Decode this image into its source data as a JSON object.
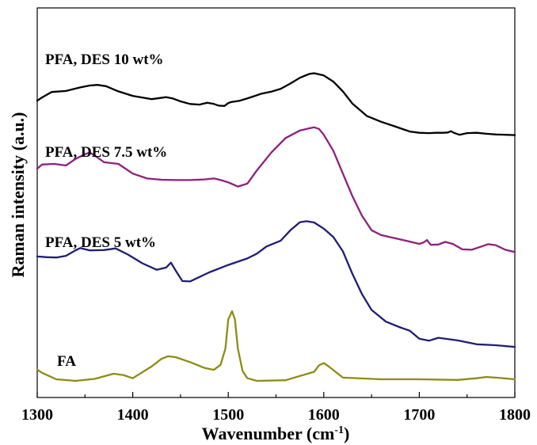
{
  "chart_data": {
    "type": "line",
    "title": "",
    "xlabel": "Wavenumber (cm",
    "xlabel_sup": "-1",
    "xlabel_close": ")",
    "ylabel": "Raman intensity (a.u.)",
    "xlim": [
      1300,
      1800
    ],
    "ylim": [
      0,
      100
    ],
    "y_ticks_shown": false,
    "xticks": [
      1300,
      1400,
      1500,
      1600,
      1700,
      1800
    ],
    "grid": false,
    "legend": "none",
    "series": [
      {
        "name": "PFA, DES 10 wt%",
        "color": "#000000",
        "x": [
          1300,
          1305,
          1315,
          1330,
          1345,
          1355,
          1363,
          1372,
          1385,
          1400,
          1420,
          1435,
          1442,
          1450,
          1460,
          1470,
          1478,
          1485,
          1490,
          1496,
          1500,
          1503,
          1512,
          1522,
          1526,
          1535,
          1545,
          1555,
          1565,
          1575,
          1585,
          1590,
          1600,
          1610,
          1620,
          1630,
          1645,
          1660,
          1675,
          1690,
          1700,
          1710,
          1718,
          1725,
          1730,
          1733,
          1737,
          1742,
          1750,
          1760,
          1770,
          1780,
          1790,
          1800
        ],
        "y": [
          86.5,
          87.5,
          89.2,
          89.5,
          90.6,
          91.2,
          91.4,
          91.0,
          89.4,
          88.0,
          87.0,
          87.6,
          87.2,
          86.3,
          85.5,
          85.3,
          85.9,
          85.5,
          85.0,
          84.9,
          85.8,
          86.1,
          86.5,
          87.4,
          87.8,
          88.7,
          89.3,
          90.2,
          91.8,
          93.6,
          94.8,
          95.0,
          94.3,
          92.4,
          89.4,
          85.6,
          81.8,
          80.0,
          78.5,
          77.0,
          76.6,
          76.5,
          76.6,
          76.6,
          76.7,
          77.1,
          76.5,
          76.0,
          76.5,
          76.6,
          76.3,
          76.1,
          76.0,
          75.9
        ]
      },
      {
        "name": "PFA, DES 7.5 wt%",
        "color": "#8e1f7e",
        "x": [
          1300,
          1305,
          1318,
          1330,
          1340,
          1350,
          1355,
          1360,
          1370,
          1385,
          1400,
          1415,
          1430,
          1445,
          1460,
          1475,
          1485,
          1492,
          1500,
          1510,
          1520,
          1530,
          1545,
          1560,
          1575,
          1585,
          1590,
          1595,
          1600,
          1610,
          1620,
          1630,
          1640,
          1650,
          1660,
          1675,
          1690,
          1700,
          1705,
          1708,
          1712,
          1720,
          1727,
          1735,
          1745,
          1755,
          1765,
          1772,
          1780,
          1790,
          1800
        ],
        "y": [
          65.5,
          66.8,
          67.0,
          66.5,
          68.5,
          70.0,
          70.5,
          69.6,
          67.5,
          67.0,
          64.0,
          62.5,
          62.1,
          62.0,
          62.0,
          62.2,
          62.5,
          62.0,
          61.3,
          60.0,
          60.9,
          65.0,
          70.5,
          75.0,
          77.3,
          78.0,
          78.3,
          77.8,
          76.0,
          71.0,
          64.0,
          57.0,
          51.0,
          46.5,
          45.0,
          44.0,
          43.0,
          42.3,
          42.8,
          43.5,
          42.0,
          42.1,
          42.9,
          42.3,
          40.6,
          40.5,
          41.5,
          42.2,
          41.9,
          40.5,
          39.8
        ]
      },
      {
        "name": "PFA, DES 5 wt%",
        "color": "#1f1d76",
        "x": [
          1300,
          1310,
          1320,
          1330,
          1340,
          1345,
          1355,
          1370,
          1382,
          1395,
          1410,
          1425,
          1435,
          1440,
          1445,
          1452,
          1460,
          1480,
          1500,
          1520,
          1530,
          1540,
          1555,
          1565,
          1575,
          1582,
          1590,
          1600,
          1610,
          1620,
          1630,
          1640,
          1650,
          1665,
          1680,
          1690,
          1700,
          1710,
          1720,
          1740,
          1760,
          1780,
          1800
        ],
        "y": [
          38.4,
          38.2,
          38.1,
          38.6,
          40.3,
          41.0,
          40.3,
          40.4,
          40.9,
          39.0,
          36.3,
          34.3,
          35.0,
          36.5,
          34.0,
          30.8,
          30.7,
          33.5,
          35.8,
          37.8,
          39.3,
          41.5,
          43.3,
          46.5,
          49.0,
          49.3,
          48.9,
          47.0,
          44.4,
          40.0,
          33.0,
          26.8,
          21.9,
          18.3,
          16.5,
          15.5,
          13.0,
          12.4,
          13.3,
          12.5,
          11.3,
          11.0,
          10.5
        ]
      },
      {
        "name": "FA",
        "color": "#8c8c14",
        "x": [
          1300,
          1305,
          1320,
          1340,
          1360,
          1380,
          1390,
          1400,
          1420,
          1430,
          1437,
          1445,
          1460,
          1475,
          1485,
          1492,
          1497,
          1500,
          1504,
          1507,
          1510,
          1515,
          1520,
          1530,
          1560,
          1590,
          1595,
          1600,
          1605,
          1620,
          1660,
          1700,
          1740,
          1760,
          1770,
          1780,
          1800
        ],
        "y": [
          3.5,
          2.5,
          0.5,
          0.0,
          0.6,
          2.2,
          1.8,
          0.8,
          4.5,
          6.8,
          7.6,
          7.3,
          5.8,
          4.0,
          3.4,
          5.0,
          10.0,
          19.0,
          21.5,
          19.0,
          10.0,
          3.0,
          0.8,
          0.0,
          0.2,
          2.8,
          4.8,
          5.5,
          4.5,
          1.0,
          0.5,
          0.5,
          0.3,
          0.8,
          1.2,
          1.0,
          0.5
        ]
      }
    ]
  }
}
